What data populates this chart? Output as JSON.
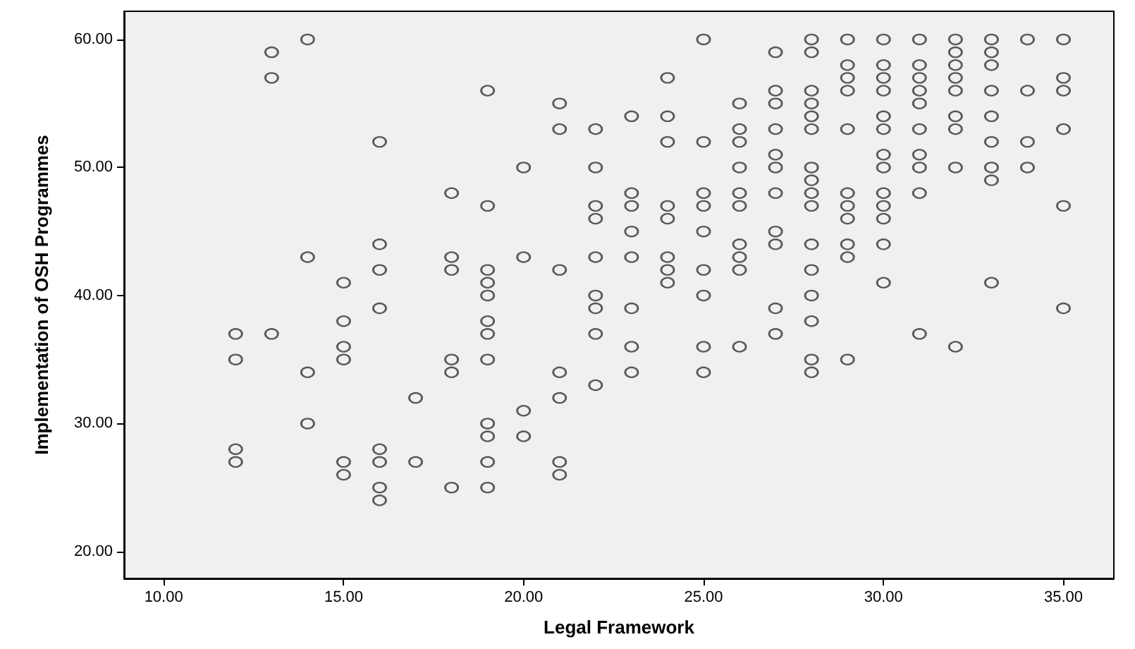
{
  "chart_data": {
    "type": "scatter",
    "xlabel": "Legal Framework",
    "ylabel": "Implementation of OSH Programmes",
    "xlim": [
      8.9,
      36.4
    ],
    "ylim": [
      17.9,
      62.2
    ],
    "xticks": [
      {
        "value": 10,
        "label": "10.00"
      },
      {
        "value": 15,
        "label": "15.00"
      },
      {
        "value": 20,
        "label": "20.00"
      },
      {
        "value": 25,
        "label": "25.00"
      },
      {
        "value": 30,
        "label": "30.00"
      },
      {
        "value": 35,
        "label": "35.00"
      }
    ],
    "yticks": [
      {
        "value": 20,
        "label": "20.00"
      },
      {
        "value": 30,
        "label": "30.00"
      },
      {
        "value": 40,
        "label": "40.00"
      },
      {
        "value": 50,
        "label": "50.00"
      },
      {
        "value": 60,
        "label": "60.00"
      }
    ],
    "grid": false,
    "marker": "circle",
    "series": [
      {
        "color": "#333333",
        "x": [
          12,
          12,
          12,
          12,
          13,
          13,
          13,
          14,
          14,
          14,
          14,
          15,
          15,
          15,
          15,
          15,
          15,
          16,
          16,
          16,
          16,
          16,
          16,
          16,
          16,
          17,
          17,
          18,
          18,
          18,
          18,
          18,
          18,
          19,
          19,
          19,
          19,
          19,
          19,
          19,
          19,
          19,
          19,
          19,
          19,
          20,
          20,
          20,
          20,
          21,
          21,
          21,
          21,
          21,
          21,
          21,
          22,
          22,
          22,
          22,
          22,
          22,
          22,
          22,
          22,
          23,
          23,
          23,
          23,
          23,
          23,
          23,
          23,
          24,
          24,
          24,
          24,
          24,
          24,
          24,
          24,
          25,
          25,
          25,
          25,
          25,
          25,
          25,
          25,
          25,
          26,
          26,
          26,
          26,
          26,
          26,
          26,
          26,
          26,
          26,
          27,
          27,
          27,
          27,
          27,
          27,
          27,
          27,
          27,
          27,
          27,
          28,
          28,
          28,
          28,
          28,
          28,
          28,
          28,
          28,
          28,
          28,
          28,
          28,
          28,
          28,
          28,
          29,
          29,
          29,
          29,
          29,
          29,
          29,
          29,
          29,
          29,
          29,
          30,
          30,
          30,
          30,
          30,
          30,
          30,
          30,
          30,
          30,
          30,
          30,
          30,
          31,
          31,
          31,
          31,
          31,
          31,
          31,
          31,
          31,
          31,
          32,
          32,
          32,
          32,
          32,
          32,
          32,
          32,
          32,
          33,
          33,
          33,
          33,
          33,
          33,
          33,
          33,
          33,
          34,
          34,
          34,
          34,
          35,
          35,
          35,
          35,
          35,
          35
        ],
        "values": [
          37,
          35,
          28,
          27,
          59,
          57,
          37,
          60,
          43,
          34,
          30,
          41,
          38,
          36,
          35,
          27,
          26,
          52,
          44,
          42,
          39,
          28,
          27,
          25,
          24,
          32,
          27,
          48,
          43,
          42,
          35,
          34,
          25,
          56,
          47,
          42,
          41,
          40,
          38,
          37,
          35,
          30,
          29,
          27,
          25,
          50,
          43,
          31,
          29,
          55,
          53,
          42,
          34,
          32,
          27,
          26,
          53,
          50,
          47,
          46,
          43,
          40,
          39,
          37,
          33,
          54,
          48,
          47,
          45,
          43,
          39,
          36,
          34,
          57,
          54,
          52,
          47,
          46,
          43,
          42,
          41,
          60,
          52,
          48,
          47,
          45,
          42,
          40,
          36,
          34,
          55,
          53,
          52,
          50,
          48,
          47,
          44,
          43,
          42,
          36,
          59,
          56,
          55,
          53,
          51,
          50,
          48,
          45,
          44,
          39,
          37,
          60,
          59,
          56,
          55,
          54,
          53,
          50,
          49,
          48,
          47,
          44,
          42,
          40,
          38,
          35,
          34,
          60,
          58,
          57,
          56,
          53,
          48,
          47,
          46,
          44,
          43,
          35,
          60,
          58,
          57,
          56,
          54,
          53,
          51,
          50,
          48,
          47,
          46,
          44,
          41,
          60,
          58,
          57,
          56,
          55,
          53,
          51,
          50,
          48,
          37,
          60,
          59,
          58,
          57,
          56,
          54,
          53,
          50,
          36,
          60,
          59,
          58,
          56,
          54,
          52,
          50,
          49,
          41,
          60,
          56,
          52,
          50,
          60,
          57,
          56,
          53,
          47,
          39
        ]
      }
    ]
  }
}
